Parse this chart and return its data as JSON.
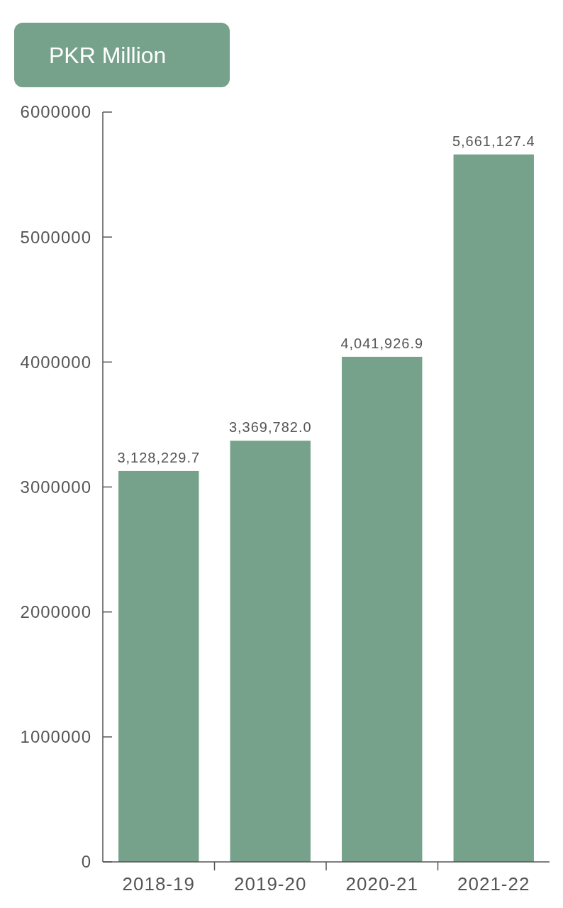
{
  "chart_data": {
    "type": "bar",
    "title": "PKR Million",
    "categories": [
      "2018-19",
      "2019-20",
      "2020-21",
      "2021-22"
    ],
    "values": [
      3128229.7,
      3369782.0,
      4041926.9,
      5661127.4
    ],
    "color": "#76a18a",
    "ylim": [
      0,
      6000000
    ],
    "yticks": [
      0,
      1000000,
      2000000,
      3000000,
      4000000,
      5000000,
      6000000
    ],
    "value_labels": [
      "3,128,229.7",
      "3,369,782.0",
      "4,041,926.9",
      "5,661,127.4"
    ],
    "grid": false
  }
}
